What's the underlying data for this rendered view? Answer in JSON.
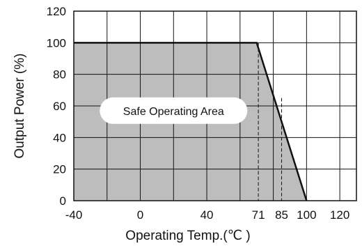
{
  "chart_data": {
    "type": "area",
    "xlabel": "Operating Temp.(℃ )",
    "ylabel": "Output Power (%)",
    "xlim": [
      -40,
      130
    ],
    "ylim": [
      0,
      120
    ],
    "grid": true,
    "x_ticks": [
      -40,
      0,
      40,
      71,
      85,
      100,
      120
    ],
    "x_tick_labels": [
      "-40",
      "0",
      "40",
      "71",
      "85",
      "100",
      "120"
    ],
    "y_ticks": [
      0,
      20,
      40,
      60,
      80,
      100,
      120
    ],
    "y_tick_labels": [
      "0",
      "20",
      "40",
      "60",
      "80",
      "100",
      "120"
    ],
    "series": [
      {
        "x": [
          -40,
          70,
          100
        ],
        "y": [
          100,
          100,
          0
        ]
      }
    ],
    "reference_lines": [
      {
        "x": 71,
        "y": 100,
        "style": "dashed"
      },
      {
        "x": 85,
        "y": 65,
        "style": "dashed"
      }
    ],
    "annotations": [
      {
        "text": "Safe Operating Area",
        "x": 20,
        "y": 57
      }
    ],
    "colors": {
      "fill": "#bdbdbd",
      "line": "#111111",
      "grid": "#111111",
      "label_bg": "#ffffff"
    }
  }
}
